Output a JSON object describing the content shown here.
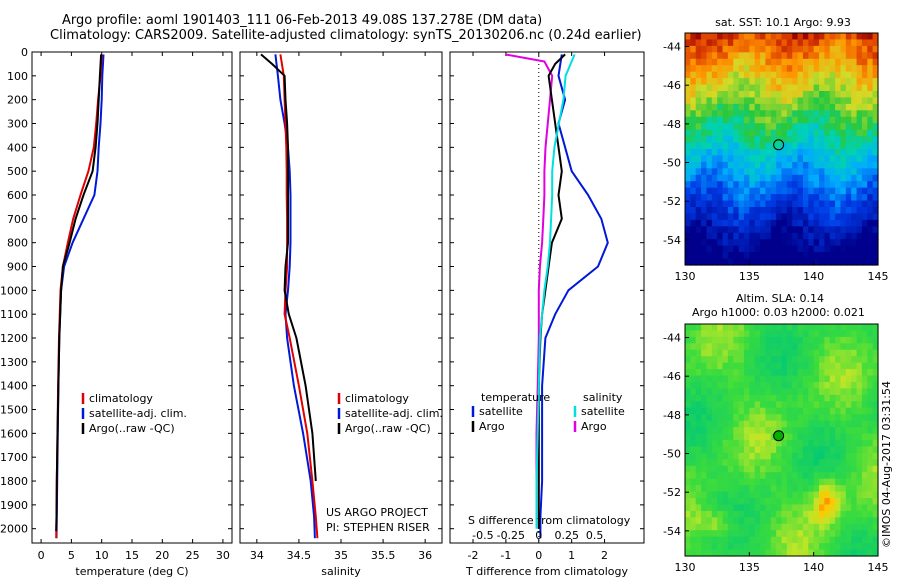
{
  "header": {
    "line1": "Argo profile: aoml 1901403_111 06-Feb-2013 49.08S 137.278E (DM data)",
    "line2": "Climatology: CARS2009. Satellite-adjusted climatology: synTS_20130206.nc (0.24d earlier)"
  },
  "colors": {
    "climatology": "#e00000",
    "satellite": "#0018d8",
    "argo": "#000000",
    "argo_salinity": "#e000e0",
    "satellite_salinity": "#00e0e0"
  },
  "depth_axis": {
    "ticks": [
      0,
      100,
      200,
      300,
      400,
      500,
      600,
      700,
      800,
      900,
      1000,
      1100,
      1200,
      1300,
      1400,
      1500,
      1600,
      1700,
      1800,
      1900,
      2000
    ],
    "range": [
      0,
      2060
    ]
  },
  "legend_left": [
    "climatology",
    "satellite-adj. clim.",
    "Argo(..raw -QC)"
  ],
  "credits": [
    "US ARGO PROJECT",
    "PI: STEPHEN RISER"
  ],
  "diff_legend": {
    "temperature_title": "temperature",
    "salinity_title": "salinity",
    "temperature_items": [
      "satellite",
      "Argo"
    ],
    "salinity_items": [
      "satellite",
      "Argo"
    ]
  },
  "maps": {
    "sst": {
      "title": "sat. SST: 10.1 Argo: 9.93"
    },
    "sla": {
      "title1": "Altim. SLA: 0.14",
      "title2": "Argo h1000: 0.03 h2000: 0.021"
    },
    "lon_ticks": [
      "130",
      "135",
      "140",
      "145"
    ],
    "lat_ticks": [
      "-44",
      "-46",
      "-48",
      "-50",
      "-52",
      "-54"
    ],
    "float_position": {
      "lon": 137.278,
      "lat": -49.08
    }
  },
  "imos_stamp": "©IMOS 04-Aug-2017 03:31:54",
  "chart_data": [
    {
      "type": "line",
      "xlabel": "temperature (deg C)",
      "ylabel": "",
      "xlim": [
        -1.5,
        31.5
      ],
      "x_ticks": [
        0,
        5,
        10,
        15,
        20,
        25,
        30
      ],
      "ylim": [
        2060,
        0
      ],
      "series": [
        {
          "name": "climatology",
          "x": [
            10.0,
            9.8,
            9.4,
            9.1,
            8.7,
            7.8,
            6.5,
            5.3,
            4.4,
            3.6,
            3.2,
            2.95,
            2.8,
            2.7,
            2.6,
            2.55,
            2.5
          ],
          "y": [
            10,
            100,
            200,
            300,
            400,
            500,
            600,
            700,
            800,
            900,
            1000,
            1200,
            1400,
            1600,
            1800,
            1950,
            2040
          ]
        },
        {
          "name": "satellite-adj. clim.",
          "x": [
            10.3,
            10.1,
            10.0,
            9.8,
            9.5,
            9.3,
            8.8,
            7.0,
            5.2,
            3.8,
            3.3,
            3.0,
            2.85,
            2.75,
            2.65,
            2.6,
            2.55
          ],
          "y": [
            10,
            100,
            200,
            300,
            400,
            500,
            600,
            700,
            800,
            900,
            1000,
            1200,
            1400,
            1600,
            1800,
            1950,
            2040
          ]
        },
        {
          "name": "Argo(..raw -QC)",
          "x": [
            9.9,
            9.7,
            9.5,
            9.3,
            9.0,
            8.5,
            7.0,
            5.7,
            4.7,
            3.6,
            3.3,
            3.0,
            2.85,
            2.7,
            2.6,
            2.55,
            2.5
          ],
          "y": [
            10,
            100,
            200,
            300,
            400,
            500,
            600,
            700,
            800,
            900,
            1000,
            1200,
            1400,
            1600,
            1800,
            1950,
            2010
          ]
        }
      ]
    },
    {
      "type": "line",
      "xlabel": "salinity",
      "ylabel": "",
      "xlim": [
        33.8,
        36.2
      ],
      "x_ticks": [
        34,
        34.5,
        35,
        35.5,
        36
      ],
      "ylim": [
        2060,
        0
      ],
      "series": [
        {
          "name": "climatology",
          "x": [
            34.28,
            34.32,
            34.33,
            34.34,
            34.35,
            34.355,
            34.355,
            34.36,
            34.36,
            34.36,
            34.34,
            34.33,
            34.39,
            34.5,
            34.6,
            34.66,
            34.7,
            34.72
          ],
          "y": [
            10,
            100,
            200,
            300,
            400,
            500,
            600,
            700,
            800,
            900,
            1000,
            1100,
            1200,
            1400,
            1600,
            1800,
            1950,
            2040
          ]
        },
        {
          "name": "satellite-adj. clim.",
          "x": [
            34.22,
            34.25,
            34.28,
            34.33,
            34.37,
            34.39,
            34.4,
            34.4,
            34.4,
            34.39,
            34.37,
            34.34,
            34.36,
            34.44,
            34.55,
            34.64,
            34.68,
            34.69
          ],
          "y": [
            10,
            100,
            200,
            300,
            400,
            500,
            600,
            700,
            800,
            900,
            1000,
            1100,
            1200,
            1400,
            1600,
            1800,
            1950,
            2040
          ]
        },
        {
          "name": "Argo(..raw -QC)",
          "x": [
            34.05,
            34.18,
            34.33,
            34.34,
            34.36,
            34.37,
            34.37,
            34.37,
            34.37,
            34.37,
            34.34,
            34.33,
            34.38,
            34.47,
            34.58,
            34.66,
            34.7
          ],
          "y": [
            10,
            50,
            100,
            200,
            300,
            400,
            500,
            600,
            700,
            800,
            900,
            1000,
            1100,
            1200,
            1400,
            1600,
            1800
          ]
        }
      ]
    },
    {
      "type": "line",
      "xlabel": "T difference from climatology",
      "ylabel": "",
      "x_ticks": [
        -2,
        -1,
        0,
        1,
        2
      ],
      "xlim": [
        -2.7,
        3.2
      ],
      "secondary_xlabel": "S difference from climatology",
      "secondary_x_ticks": [
        "-0.5",
        "-0.25",
        "0",
        "0.25",
        "0.5"
      ],
      "ylim": [
        2060,
        0
      ],
      "series": [
        {
          "name": "temperature satellite",
          "x": [
            0.7,
            0.6,
            0.8,
            0.6,
            0.8,
            1.0,
            1.5,
            1.9,
            2.1,
            1.8,
            0.9,
            0.5,
            0.2,
            0.1,
            0.1,
            0.1,
            0.05,
            0.05
          ],
          "y": [
            10,
            100,
            200,
            300,
            400,
            500,
            600,
            700,
            800,
            900,
            1000,
            1100,
            1200,
            1400,
            1600,
            1800,
            1950,
            2040
          ]
        },
        {
          "name": "temperature Argo",
          "x": [
            0.8,
            0.5,
            0.3,
            0.4,
            0.5,
            0.6,
            0.7,
            0.6,
            0.7,
            0.4,
            0.3,
            0.2,
            0.1,
            0.05,
            0.0,
            0.0,
            0.0,
            0.0
          ],
          "y": [
            10,
            50,
            100,
            200,
            300,
            400,
            500,
            600,
            700,
            800,
            900,
            1000,
            1100,
            1200,
            1400,
            1600,
            1800,
            2000
          ]
        },
        {
          "name": "salinity satellite",
          "x": [
            0.32,
            0.24,
            0.22,
            0.18,
            0.14,
            0.12,
            0.12,
            0.11,
            0.1,
            0.08,
            0.05,
            0.03,
            0.01,
            0.0,
            -0.01,
            -0.02,
            -0.02
          ],
          "y": [
            10,
            100,
            200,
            300,
            400,
            500,
            600,
            700,
            800,
            900,
            1000,
            1100,
            1200,
            1400,
            1600,
            1800,
            2000
          ]
        },
        {
          "name": "salinity Argo",
          "x": [
            -0.3,
            0.05,
            0.12,
            0.1,
            0.06,
            0.05,
            0.05,
            0.04,
            0.03,
            0.01,
            0.0,
            0.0,
            0.0,
            -0.01,
            -0.02,
            -0.02
          ],
          "y": [
            10,
            40,
            100,
            200,
            400,
            500,
            600,
            700,
            800,
            900,
            1000,
            1100,
            1200,
            1400,
            1600,
            1800
          ]
        }
      ]
    },
    {
      "type": "heatmap",
      "title": "sat. SST: 10.1 Argo: 9.93",
      "xlim": [
        130,
        145
      ],
      "ylim": [
        -55.3,
        -43.3
      ],
      "x_ticks": [
        130,
        135,
        140,
        145
      ],
      "y_ticks": [
        -44,
        -46,
        -48,
        -50,
        -52,
        -54
      ],
      "value_range": [
        4,
        16
      ]
    },
    {
      "type": "heatmap",
      "title": "Altim. SLA: 0.14 / Argo h1000: 0.03 h2000: 0.021",
      "xlim": [
        130,
        145
      ],
      "ylim": [
        -55.3,
        -43.3
      ],
      "x_ticks": [
        130,
        135,
        140,
        145
      ],
      "y_ticks": [
        -44,
        -46,
        -48,
        -50,
        -52,
        -54
      ]
    }
  ]
}
